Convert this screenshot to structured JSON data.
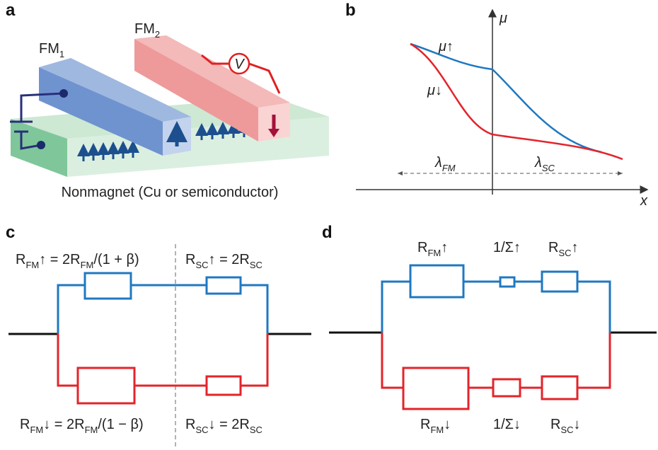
{
  "panel_a": {
    "letter": "a",
    "fm1": [
      "FM",
      "1"
    ],
    "fm2": [
      "FM",
      "2"
    ],
    "voltmeter": "V",
    "caption": "Nonmagnet (Cu or semiconductor)"
  },
  "panel_b": {
    "letter": "b",
    "y_axis": "μ",
    "x_axis": "x",
    "mu_up": "μ↑",
    "mu_down": "μ↓",
    "lambda_fm": [
      "λ",
      "FM"
    ],
    "lambda_sc": [
      "λ",
      "SC"
    ]
  },
  "panel_c": {
    "letter": "c",
    "r_fm_up": [
      "R",
      "FM",
      "↑ = 2R",
      "FM",
      "/(1 + β)"
    ],
    "r_sc_up": [
      "R",
      "SC",
      "↑ = 2R",
      "SC"
    ],
    "r_fm_down": [
      "R",
      "FM",
      "↓ = 2R",
      "FM",
      "/(1 − β)"
    ],
    "r_sc_down": [
      "R",
      "SC",
      "↓ = 2R",
      "SC"
    ]
  },
  "panel_d": {
    "letter": "d",
    "r_fm_up": [
      "R",
      "FM",
      "↑"
    ],
    "sigma_up": "1/Σ↑",
    "r_sc_up": [
      "R",
      "SC",
      "↑"
    ],
    "r_fm_down": [
      "R",
      "FM",
      "↓"
    ],
    "sigma_down": "1/Σ↓",
    "r_sc_down": [
      "R",
      "SC",
      "↓"
    ]
  }
}
